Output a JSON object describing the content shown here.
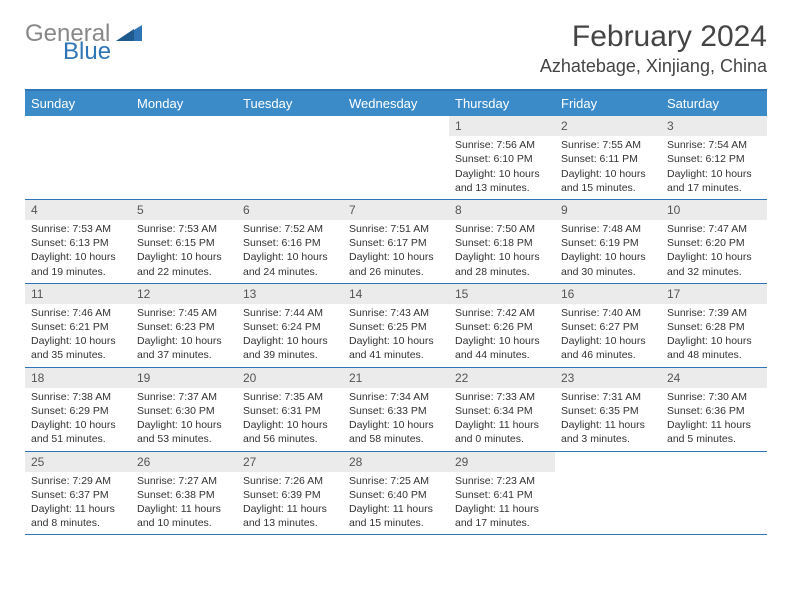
{
  "logo": {
    "gray": "General",
    "blue": "Blue"
  },
  "title": "February 2024",
  "location": "Azhatebage, Xinjiang, China",
  "colors": {
    "header_bg": "#3b8bc9",
    "border": "#2f75b5",
    "daynum_bg": "#ebebeb",
    "logo_gray": "#888888",
    "logo_blue": "#2f75b5"
  },
  "day_names": [
    "Sunday",
    "Monday",
    "Tuesday",
    "Wednesday",
    "Thursday",
    "Friday",
    "Saturday"
  ],
  "weeks": [
    [
      null,
      null,
      null,
      null,
      {
        "n": "1",
        "sr": "Sunrise: 7:56 AM",
        "ss": "Sunset: 6:10 PM",
        "dl": "Daylight: 10 hours and 13 minutes."
      },
      {
        "n": "2",
        "sr": "Sunrise: 7:55 AM",
        "ss": "Sunset: 6:11 PM",
        "dl": "Daylight: 10 hours and 15 minutes."
      },
      {
        "n": "3",
        "sr": "Sunrise: 7:54 AM",
        "ss": "Sunset: 6:12 PM",
        "dl": "Daylight: 10 hours and 17 minutes."
      }
    ],
    [
      {
        "n": "4",
        "sr": "Sunrise: 7:53 AM",
        "ss": "Sunset: 6:13 PM",
        "dl": "Daylight: 10 hours and 19 minutes."
      },
      {
        "n": "5",
        "sr": "Sunrise: 7:53 AM",
        "ss": "Sunset: 6:15 PM",
        "dl": "Daylight: 10 hours and 22 minutes."
      },
      {
        "n": "6",
        "sr": "Sunrise: 7:52 AM",
        "ss": "Sunset: 6:16 PM",
        "dl": "Daylight: 10 hours and 24 minutes."
      },
      {
        "n": "7",
        "sr": "Sunrise: 7:51 AM",
        "ss": "Sunset: 6:17 PM",
        "dl": "Daylight: 10 hours and 26 minutes."
      },
      {
        "n": "8",
        "sr": "Sunrise: 7:50 AM",
        "ss": "Sunset: 6:18 PM",
        "dl": "Daylight: 10 hours and 28 minutes."
      },
      {
        "n": "9",
        "sr": "Sunrise: 7:48 AM",
        "ss": "Sunset: 6:19 PM",
        "dl": "Daylight: 10 hours and 30 minutes."
      },
      {
        "n": "10",
        "sr": "Sunrise: 7:47 AM",
        "ss": "Sunset: 6:20 PM",
        "dl": "Daylight: 10 hours and 32 minutes."
      }
    ],
    [
      {
        "n": "11",
        "sr": "Sunrise: 7:46 AM",
        "ss": "Sunset: 6:21 PM",
        "dl": "Daylight: 10 hours and 35 minutes."
      },
      {
        "n": "12",
        "sr": "Sunrise: 7:45 AM",
        "ss": "Sunset: 6:23 PM",
        "dl": "Daylight: 10 hours and 37 minutes."
      },
      {
        "n": "13",
        "sr": "Sunrise: 7:44 AM",
        "ss": "Sunset: 6:24 PM",
        "dl": "Daylight: 10 hours and 39 minutes."
      },
      {
        "n": "14",
        "sr": "Sunrise: 7:43 AM",
        "ss": "Sunset: 6:25 PM",
        "dl": "Daylight: 10 hours and 41 minutes."
      },
      {
        "n": "15",
        "sr": "Sunrise: 7:42 AM",
        "ss": "Sunset: 6:26 PM",
        "dl": "Daylight: 10 hours and 44 minutes."
      },
      {
        "n": "16",
        "sr": "Sunrise: 7:40 AM",
        "ss": "Sunset: 6:27 PM",
        "dl": "Daylight: 10 hours and 46 minutes."
      },
      {
        "n": "17",
        "sr": "Sunrise: 7:39 AM",
        "ss": "Sunset: 6:28 PM",
        "dl": "Daylight: 10 hours and 48 minutes."
      }
    ],
    [
      {
        "n": "18",
        "sr": "Sunrise: 7:38 AM",
        "ss": "Sunset: 6:29 PM",
        "dl": "Daylight: 10 hours and 51 minutes."
      },
      {
        "n": "19",
        "sr": "Sunrise: 7:37 AM",
        "ss": "Sunset: 6:30 PM",
        "dl": "Daylight: 10 hours and 53 minutes."
      },
      {
        "n": "20",
        "sr": "Sunrise: 7:35 AM",
        "ss": "Sunset: 6:31 PM",
        "dl": "Daylight: 10 hours and 56 minutes."
      },
      {
        "n": "21",
        "sr": "Sunrise: 7:34 AM",
        "ss": "Sunset: 6:33 PM",
        "dl": "Daylight: 10 hours and 58 minutes."
      },
      {
        "n": "22",
        "sr": "Sunrise: 7:33 AM",
        "ss": "Sunset: 6:34 PM",
        "dl": "Daylight: 11 hours and 0 minutes."
      },
      {
        "n": "23",
        "sr": "Sunrise: 7:31 AM",
        "ss": "Sunset: 6:35 PM",
        "dl": "Daylight: 11 hours and 3 minutes."
      },
      {
        "n": "24",
        "sr": "Sunrise: 7:30 AM",
        "ss": "Sunset: 6:36 PM",
        "dl": "Daylight: 11 hours and 5 minutes."
      }
    ],
    [
      {
        "n": "25",
        "sr": "Sunrise: 7:29 AM",
        "ss": "Sunset: 6:37 PM",
        "dl": "Daylight: 11 hours and 8 minutes."
      },
      {
        "n": "26",
        "sr": "Sunrise: 7:27 AM",
        "ss": "Sunset: 6:38 PM",
        "dl": "Daylight: 11 hours and 10 minutes."
      },
      {
        "n": "27",
        "sr": "Sunrise: 7:26 AM",
        "ss": "Sunset: 6:39 PM",
        "dl": "Daylight: 11 hours and 13 minutes."
      },
      {
        "n": "28",
        "sr": "Sunrise: 7:25 AM",
        "ss": "Sunset: 6:40 PM",
        "dl": "Daylight: 11 hours and 15 minutes."
      },
      {
        "n": "29",
        "sr": "Sunrise: 7:23 AM",
        "ss": "Sunset: 6:41 PM",
        "dl": "Daylight: 11 hours and 17 minutes."
      },
      null,
      null
    ]
  ]
}
